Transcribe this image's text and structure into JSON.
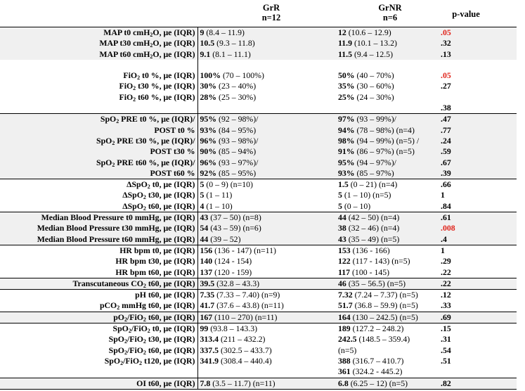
{
  "header": {
    "grr": "GrR",
    "grr_n": "n=12",
    "grnr": "GrNR",
    "grnr_n": "n=6",
    "pvalue": "p-value"
  },
  "colors": {
    "significant": "#e0241b",
    "shade": "#f0f0f0"
  },
  "rows": [
    {
      "label": "MAP t0 cmH2O, μe (IQR)",
      "a_b": "9",
      "a": " (8.4 – 11.9)",
      "b_b": "12",
      "b": " (10.6 – 12.9)",
      "p": ".05",
      "red": true,
      "shade": true,
      "sep": true
    },
    {
      "label": "MAP t30 cmH2O, μe (IQR)",
      "a_b": "10.5",
      "a": " (9.3 – 11.8)",
      "b_b": "11.9",
      "b": " (10.1 – 13.2)",
      "p": ".32",
      "shade": true
    },
    {
      "label": "MAP t60 cmH2O, μe (IQR)",
      "a_b": "9.1",
      "a": " (8.1 – 11.1)",
      "b_b": "11.5",
      "b": " (9.4 – 12.5)",
      "p": ".13",
      "shade": true
    },
    {
      "label": "",
      "a_b": "",
      "a": "",
      "b_b": "",
      "b": "",
      "p": "",
      "shade": false
    },
    {
      "label": "FiO2 t0 %, μe (IQR)",
      "a_b": "100%",
      "a": " (70 – 100%)",
      "b_b": "50%",
      "b": " (40 – 70%)",
      "p": ".05",
      "red": true,
      "shade": false
    },
    {
      "label": "FiO2 t30 %, μe (IQR)",
      "a_b": "30%",
      "a": " (23 – 40%)",
      "b_b": "35%",
      "b": " (30 – 60%)",
      "p": ".27",
      "shade": false
    },
    {
      "label": "FiO2 t60 %, μe (IQR)",
      "a_b": "28%",
      "a": " (25 – 30%)",
      "b_b": "25%",
      "b": " (24 – 30%)",
      "p": "",
      "shade": false
    },
    {
      "label": "",
      "a_b": "",
      "a": "",
      "b_b": "",
      "b": "",
      "p": ".38",
      "shade": false
    },
    {
      "label": "SpO2 PRE t0 %, μe (IQR)/",
      "a_b": "95%",
      "a": " (92 – 98%)/",
      "b_b": "97%",
      "b": " (93 – 99%)/",
      "p": ".47",
      "shade": true,
      "sep": true
    },
    {
      "label": "POST t0 %",
      "a_b": "93%",
      "a": " (84 – 95%)",
      "b_b": "94%",
      "b": " (78 – 98%) (n=4)",
      "p": ".77",
      "shade": true
    },
    {
      "label": "SpO2 PRE t30 %, μe (IQR)/",
      "a_b": "96%",
      "a": " (93 – 98%)/",
      "b_b": "98%",
      "b": " (94 – 99%) (n=5) /",
      "p": ".24",
      "shade": true
    },
    {
      "label": "POST t30 %",
      "a_b": "90%",
      "a": " (85 – 94%)",
      "b_b": "91%",
      "b": " (86 – 97%) (n=5)",
      "p": ".59",
      "shade": true
    },
    {
      "label": "SpO2 PRE t60 %, μe (IQR)/",
      "a_b": "96%",
      "a": " (93 – 97%)/",
      "b_b": "95%",
      "b": " (94 – 97%)/",
      "p": ".67",
      "shade": true
    },
    {
      "label": "POST t60 %",
      "a_b": "92%",
      "a": " (85 – 95%)",
      "b_b": "93%",
      "b": " (85 – 97%)",
      "p": ".39",
      "shade": true
    },
    {
      "label": "ΔSpO2 t0, μe (IQR)",
      "a_b": "5",
      "a": " (0 – 9) (n=10)",
      "b_b": "1.5",
      "b": " (0 – 21) (n=4)",
      "p": ".66",
      "shade": false,
      "sep": true
    },
    {
      "label": "ΔSpO2 t30, μe (IQR)",
      "a_b": "5",
      "a": " (1 – 11)",
      "b_b": "5",
      "b": " (1 – 10) (n=5)",
      "p": "1",
      "shade": false
    },
    {
      "label": "ΔSpO2 t60, μe (IQR)",
      "a_b": "4",
      "a": " (1 – 10)",
      "b_b": "5",
      "b": " (0 – 10)",
      "p": ".84",
      "shade": false
    },
    {
      "label": "Median Blood Pressure t0 mmHg, μe (IQR)",
      "a_b": "43",
      "a": " (37 – 50) (n=8)",
      "b_b": "44",
      "b": " (42 – 50) (n=4)",
      "p": ".61",
      "shade": true,
      "sep": true
    },
    {
      "label": "Median Blood Pressure t30 mmHg, μe (IQR)",
      "a_b": "54",
      "a": " (43 – 59) (n=6)",
      "b_b": "38",
      "b": " (32 – 46) (n=4)",
      "p": ".008",
      "red": true,
      "shade": true
    },
    {
      "label": "Median Blood Pressure t60 mmHg, μe (IQR)",
      "a_b": "44",
      "a": " (39 – 52)",
      "b_b": "43",
      "b": " (35 – 49) (n=5)",
      "p": ".4",
      "shade": true
    },
    {
      "label": "HR bpm t0, μe (IQR)",
      "a_b": "156",
      "a": " (136 - 147) (n=11)",
      "b_b": "153",
      "b": " (136 - 166)",
      "p": "1",
      "shade": false,
      "sep": true
    },
    {
      "label": "HR bpm t30, μe (IQR)",
      "a_b": "140",
      "a": " (124 - 154)",
      "b_b": "122",
      "b": " (117 - 143) (n=5)",
      "p": ".29",
      "shade": false
    },
    {
      "label": "HR bpm t60, μe (IQR)",
      "a_b": "137",
      "a": " (120 - 159)",
      "b_b": "117",
      "b": " (100 - 145)",
      "p": ".22",
      "shade": false
    },
    {
      "label": "Transcutaneous CO2 t60, μe (IQR)",
      "a_b": "39.5",
      "a": " (32.8 – 43.3)",
      "b_b": "46",
      "b": " (35 – 56.5) (n=5)",
      "p": ".22",
      "shade": true,
      "sep": true
    },
    {
      "label": "pH t60, μe (IQR)",
      "a_b": "7.35",
      "a": " (7.33 – 7.40) (n=9)",
      "b_b": "7.32",
      "b": " (7.24 – 7.37) (n=5)",
      "p": ".12",
      "shade": false,
      "sep": true
    },
    {
      "label": "pCO2 mmHg t60, μe (IQR)",
      "a_b": "41.7",
      "a": " (37.6 – 43.8) (n=11)",
      "b_b": "51.7",
      "b": " (36.8 – 59.9) (n=5)",
      "p": ".33",
      "shade": false
    },
    {
      "label": "pO2/FiO2 t60, μe (IQR)",
      "a_b": "167",
      "a": " (110 – 270) (n=11)",
      "b_b": "164",
      "b": " (130 – 242.5) (n=5)",
      "p": ".69",
      "shade": true,
      "sep": true
    },
    {
      "label": "SpO2/FiO2 t0, μe (IQR)",
      "a_b": "99",
      "a": " (93.8 – 143.3)",
      "b_b": "189",
      "b": " (127.2 – 248.2)",
      "p": ".15",
      "shade": false,
      "sep": true
    },
    {
      "label": "SpO2/FiO2 t30, μe (IQR)",
      "a_b": "313.4",
      "a": " (211 – 432.2)",
      "b_b": "242.5",
      "b": " (148.5 – 359.4)",
      "p": ".31",
      "shade": false
    },
    {
      "label": "SpO2/FiO2 t60, μe (IQR)",
      "a_b": "337.5",
      "a": " (302.5 – 433.7)",
      "b_b": "",
      "b": "(n=5)",
      "p": ".54",
      "shade": false
    },
    {
      "label": "SpO2/FiO2 t120, μe (IQR)",
      "a_b": "341.9",
      "a": " (308.4 – 440.4)",
      "b_b": "388",
      "b": " (316.7 – 410.7)",
      "p": ".51",
      "shade": false
    },
    {
      "label": "",
      "a_b": "",
      "a": "",
      "b_b": "361",
      "b": " (324.2 - 445.2)",
      "p": "",
      "shade": false
    },
    {
      "label": "OI t60, μe (IQR)",
      "a_b": "7.8",
      "a": " (3.5 – 11.7) (n=11)",
      "b_b": "6.8",
      "b": " (6.25 – 12) (n=5)",
      "p": ".82",
      "shade": true,
      "sep": true,
      "last": true
    }
  ]
}
